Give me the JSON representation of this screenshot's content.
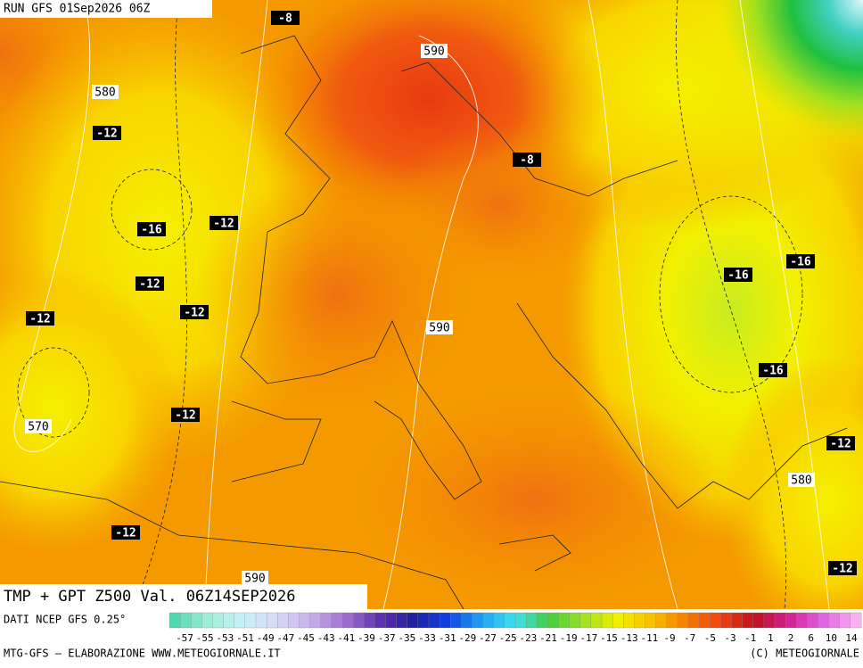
{
  "header": {
    "run": "RUN GFS 01Sep2026 06Z"
  },
  "map": {
    "temperature_labels": [
      -8,
      -12,
      -16,
      -12,
      -12,
      -12,
      -12,
      -12,
      -12,
      -8,
      -16,
      -16,
      -16,
      -12,
      -12
    ],
    "height_labels": [
      590,
      580,
      590,
      570,
      580,
      590
    ]
  },
  "footer": {
    "title": "TMP + GPT Z500 Val. 06Z14SEP2026",
    "source": "DATI NCEP GFS 0.25°",
    "credit": "MTG-GFS — ELABORAZIONE WWW.METEOGIORNALE.IT",
    "copyright": "(C) METEOGIORNALE"
  },
  "legend": {
    "ticks": [
      -57,
      -55,
      -53,
      -51,
      -49,
      -47,
      -45,
      -43,
      -41,
      -39,
      -37,
      -35,
      -33,
      -31,
      -29,
      -27,
      -25,
      -23,
      -21,
      -19,
      -17,
      -15,
      -13,
      -11,
      -9,
      -7,
      -5,
      -3,
      -1,
      1,
      2,
      6,
      10,
      14
    ]
  }
}
